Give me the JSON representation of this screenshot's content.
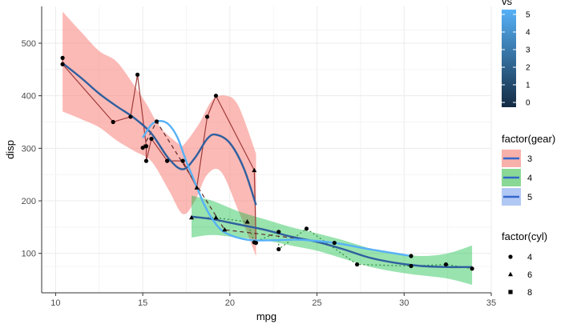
{
  "chart_data": {
    "type": "scatter",
    "xlabel": "mpg",
    "ylabel": "disp",
    "xlim": [
      9.2,
      35.0
    ],
    "ylim": [
      25,
      570
    ],
    "x_ticks": [
      10,
      15,
      20,
      25,
      30,
      35
    ],
    "y_ticks": [
      100,
      200,
      300,
      400,
      500
    ],
    "grid": true,
    "background": "#ffffff",
    "points": [
      {
        "mpg": 10.4,
        "disp": 472,
        "cyl": 8,
        "gear": 3,
        "vs": 0
      },
      {
        "mpg": 10.4,
        "disp": 460,
        "cyl": 8,
        "gear": 3,
        "vs": 0
      },
      {
        "mpg": 13.3,
        "disp": 350,
        "cyl": 8,
        "gear": 3,
        "vs": 0
      },
      {
        "mpg": 14.3,
        "disp": 360,
        "cyl": 8,
        "gear": 3,
        "vs": 0
      },
      {
        "mpg": 14.7,
        "disp": 440,
        "cyl": 8,
        "gear": 3,
        "vs": 0
      },
      {
        "mpg": 15.0,
        "disp": 301,
        "cyl": 8,
        "gear": 5,
        "vs": 0
      },
      {
        "mpg": 15.2,
        "disp": 276,
        "cyl": 8,
        "gear": 3,
        "vs": 0
      },
      {
        "mpg": 15.2,
        "disp": 304,
        "cyl": 8,
        "gear": 3,
        "vs": 0
      },
      {
        "mpg": 15.5,
        "disp": 318,
        "cyl": 8,
        "gear": 3,
        "vs": 0
      },
      {
        "mpg": 15.8,
        "disp": 351,
        "cyl": 8,
        "gear": 5,
        "vs": 0
      },
      {
        "mpg": 16.4,
        "disp": 276,
        "cyl": 8,
        "gear": 3,
        "vs": 0
      },
      {
        "mpg": 17.3,
        "disp": 276,
        "cyl": 8,
        "gear": 3,
        "vs": 0
      },
      {
        "mpg": 17.8,
        "disp": 168,
        "cyl": 6,
        "gear": 4,
        "vs": 1
      },
      {
        "mpg": 18.1,
        "disp": 225,
        "cyl": 6,
        "gear": 3,
        "vs": 1
      },
      {
        "mpg": 18.7,
        "disp": 360,
        "cyl": 8,
        "gear": 3,
        "vs": 0
      },
      {
        "mpg": 19.2,
        "disp": 400,
        "cyl": 8,
        "gear": 3,
        "vs": 0
      },
      {
        "mpg": 19.2,
        "disp": 168,
        "cyl": 6,
        "gear": 4,
        "vs": 1
      },
      {
        "mpg": 19.7,
        "disp": 145,
        "cyl": 6,
        "gear": 5,
        "vs": 0
      },
      {
        "mpg": 21.0,
        "disp": 160,
        "cyl": 6,
        "gear": 4,
        "vs": 0
      },
      {
        "mpg": 21.0,
        "disp": 160,
        "cyl": 6,
        "gear": 4,
        "vs": 0
      },
      {
        "mpg": 21.4,
        "disp": 258,
        "cyl": 6,
        "gear": 3,
        "vs": 1
      },
      {
        "mpg": 21.4,
        "disp": 121,
        "cyl": 4,
        "gear": 4,
        "vs": 1
      },
      {
        "mpg": 21.5,
        "disp": 120,
        "cyl": 4,
        "gear": 3,
        "vs": 1
      },
      {
        "mpg": 22.8,
        "disp": 108,
        "cyl": 4,
        "gear": 4,
        "vs": 1
      },
      {
        "mpg": 22.8,
        "disp": 141,
        "cyl": 4,
        "gear": 4,
        "vs": 1
      },
      {
        "mpg": 24.4,
        "disp": 147,
        "cyl": 4,
        "gear": 4,
        "vs": 1
      },
      {
        "mpg": 26.0,
        "disp": 120,
        "cyl": 4,
        "gear": 5,
        "vs": 0
      },
      {
        "mpg": 27.3,
        "disp": 79,
        "cyl": 4,
        "gear": 4,
        "vs": 1
      },
      {
        "mpg": 30.4,
        "disp": 76,
        "cyl": 4,
        "gear": 4,
        "vs": 1
      },
      {
        "mpg": 30.4,
        "disp": 95,
        "cyl": 4,
        "gear": 5,
        "vs": 1
      },
      {
        "mpg": 32.4,
        "disp": 79,
        "cyl": 4,
        "gear": 4,
        "vs": 1
      },
      {
        "mpg": 33.9,
        "disp": 71,
        "cyl": 4,
        "gear": 4,
        "vs": 1
      }
    ],
    "series": [
      {
        "name": "3",
        "color": "#a03a3a",
        "linetype": "solid",
        "points": [
          [
            10.4,
            472
          ],
          [
            10.4,
            460
          ],
          [
            13.3,
            350
          ],
          [
            14.3,
            360
          ],
          [
            14.7,
            440
          ],
          [
            15.2,
            304
          ],
          [
            15.2,
            276
          ],
          [
            15.5,
            318
          ],
          [
            16.4,
            276
          ],
          [
            17.3,
            276
          ],
          [
            18.1,
            225
          ],
          [
            18.7,
            360
          ],
          [
            19.2,
            400
          ],
          [
            21.4,
            258
          ],
          [
            21.5,
            120
          ]
        ]
      },
      {
        "name": "4",
        "color": "#2e8b3c",
        "linetype": "dotted",
        "points": [
          [
            17.8,
            168
          ],
          [
            19.2,
            168
          ],
          [
            21.0,
            160
          ],
          [
            21.0,
            160
          ],
          [
            21.4,
            121
          ],
          [
            22.8,
            141
          ],
          [
            22.8,
            108
          ],
          [
            24.4,
            147
          ],
          [
            27.3,
            79
          ],
          [
            30.4,
            76
          ],
          [
            32.4,
            79
          ],
          [
            33.9,
            71
          ]
        ]
      },
      {
        "name": "5",
        "color": "#5a2a2a",
        "linetype": "dashed",
        "points": [
          [
            15.0,
            301
          ],
          [
            15.8,
            351
          ],
          [
            19.7,
            145
          ],
          [
            26.0,
            120
          ],
          [
            30.4,
            95
          ]
        ]
      }
    ],
    "smooth": [
      {
        "name": "3",
        "color": "#2f5f9e",
        "fill": "#f8766d",
        "fill_opacity": 0.5,
        "fit": [
          [
            10.4,
            462
          ],
          [
            11.5,
            433
          ],
          [
            12.5,
            404
          ],
          [
            13.5,
            380
          ],
          [
            14.5,
            358
          ],
          [
            15.5,
            328
          ],
          [
            16.5,
            280
          ],
          [
            17.3,
            260
          ],
          [
            18.0,
            282
          ],
          [
            18.7,
            318
          ],
          [
            19.2,
            326
          ],
          [
            20.0,
            310
          ],
          [
            20.8,
            262
          ],
          [
            21.5,
            192
          ]
        ],
        "ribbon_upper": [
          [
            10.4,
            560
          ],
          [
            11.5,
            520
          ],
          [
            12.5,
            485
          ],
          [
            13.5,
            465
          ],
          [
            14.5,
            420
          ],
          [
            15.2,
            385
          ],
          [
            16.0,
            340
          ],
          [
            17.0,
            310
          ],
          [
            17.3,
            305
          ],
          [
            18.2,
            345
          ],
          [
            19.0,
            392
          ],
          [
            19.8,
            400
          ],
          [
            20.5,
            380
          ],
          [
            21.5,
            290
          ]
        ],
        "ribbon_lower": [
          [
            10.4,
            370
          ],
          [
            11.5,
            355
          ],
          [
            12.5,
            340
          ],
          [
            13.5,
            315
          ],
          [
            14.5,
            295
          ],
          [
            15.5,
            275
          ],
          [
            16.5,
            220
          ],
          [
            17.3,
            175
          ],
          [
            18.0,
            200
          ],
          [
            18.7,
            250
          ],
          [
            19.5,
            255
          ],
          [
            20.5,
            180
          ],
          [
            21.5,
            95
          ]
        ]
      },
      {
        "name": "4",
        "color": "#2f5f9e",
        "fill": "#00ba38",
        "fill_opacity": 0.4,
        "fit": [
          [
            17.8,
            170
          ],
          [
            19.0,
            165
          ],
          [
            20.5,
            155
          ],
          [
            22.0,
            145
          ],
          [
            23.5,
            132
          ],
          [
            25.0,
            122
          ],
          [
            26.5,
            108
          ],
          [
            28.0,
            92
          ],
          [
            29.5,
            82
          ],
          [
            31.0,
            76
          ],
          [
            32.5,
            74
          ],
          [
            33.9,
            74
          ]
        ],
        "ribbon_upper": [
          [
            17.8,
            210
          ],
          [
            19.0,
            200
          ],
          [
            20.5,
            180
          ],
          [
            22.0,
            165
          ],
          [
            23.5,
            150
          ],
          [
            25.0,
            138
          ],
          [
            26.5,
            125
          ],
          [
            28.0,
            110
          ],
          [
            29.5,
            100
          ],
          [
            31.0,
            95
          ],
          [
            32.5,
            100
          ],
          [
            33.9,
            115
          ]
        ],
        "ribbon_lower": [
          [
            17.8,
            130
          ],
          [
            19.0,
            135
          ],
          [
            20.5,
            130
          ],
          [
            22.0,
            125
          ],
          [
            23.5,
            115
          ],
          [
            25.0,
            105
          ],
          [
            26.5,
            90
          ],
          [
            28.0,
            75
          ],
          [
            29.5,
            65
          ],
          [
            31.0,
            58
          ],
          [
            32.5,
            52
          ],
          [
            33.9,
            40
          ]
        ]
      },
      {
        "name": "5",
        "color": "#56b1f7",
        "fill": "#619cff",
        "fill_opacity": 0.4,
        "fit": [
          [
            15.0,
            320
          ],
          [
            15.5,
            345
          ],
          [
            16.0,
            352
          ],
          [
            16.5,
            345
          ],
          [
            17.0,
            320
          ],
          [
            17.5,
            275
          ],
          [
            18.0,
            235
          ],
          [
            18.5,
            195
          ],
          [
            19.0,
            165
          ],
          [
            19.7,
            140
          ],
          [
            21.0,
            126
          ],
          [
            22.5,
            125
          ],
          [
            24.0,
            126
          ],
          [
            26.0,
            120
          ],
          [
            28.0,
            108
          ],
          [
            30.4,
            95
          ]
        ]
      }
    ],
    "legends": {
      "vs": {
        "title": "vs",
        "ticks": [
          "5",
          "4",
          "3",
          "2",
          "1",
          "0"
        ],
        "gradient": [
          "#56b1f7",
          "#132b43"
        ]
      },
      "gear": {
        "title": "factor(gear)",
        "items": [
          {
            "label": "3",
            "fill": "#f8b0aa",
            "line": "#3366cc"
          },
          {
            "label": "4",
            "fill": "#8ad896",
            "line": "#3366cc"
          },
          {
            "label": "5",
            "fill": "#b2c8f4",
            "line": "#3366cc"
          }
        ]
      },
      "cyl": {
        "title": "factor(cyl)",
        "items": [
          {
            "label": "4",
            "shape": "circle"
          },
          {
            "label": "6",
            "shape": "triangle"
          },
          {
            "label": "8",
            "shape": "square"
          }
        ]
      }
    }
  }
}
